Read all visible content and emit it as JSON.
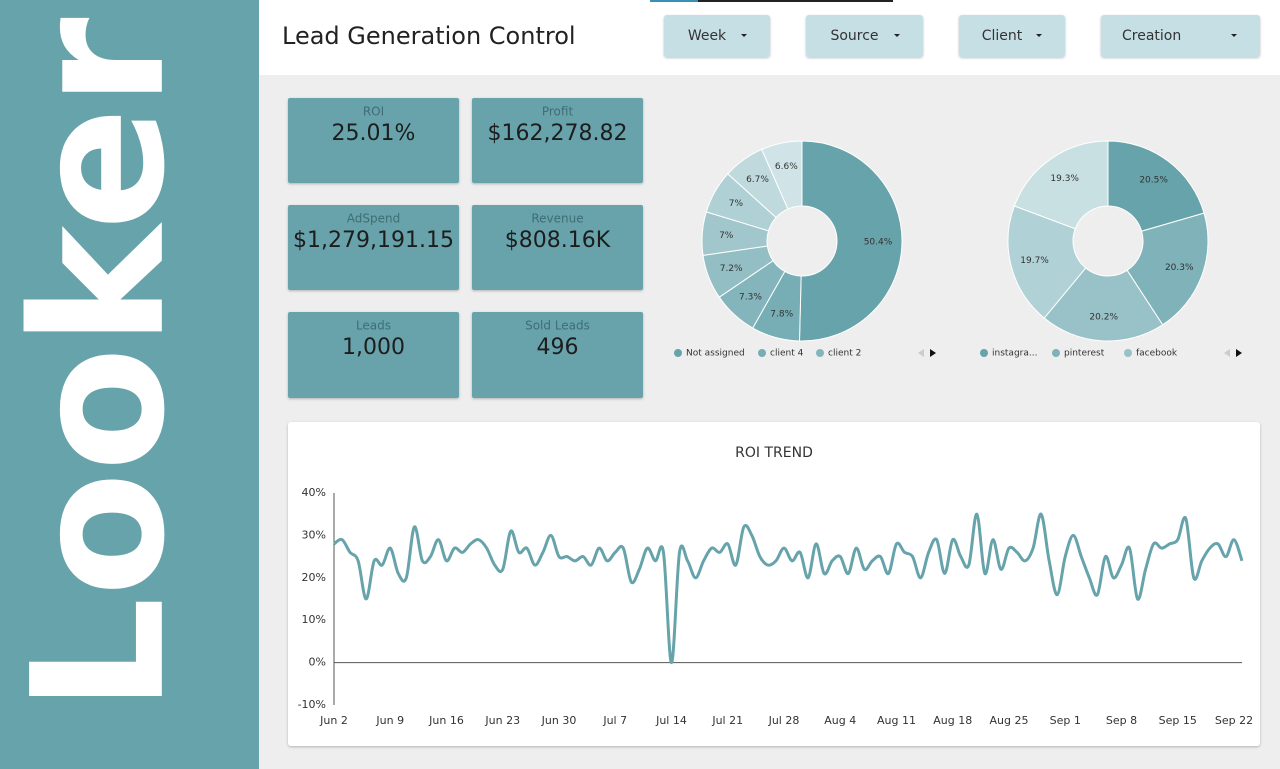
{
  "brand": "Looker",
  "header": {
    "title": "Lead Generation Control"
  },
  "filters": [
    "Week",
    "Source",
    "Client",
    "Creation"
  ],
  "kpis": [
    {
      "label": "ROI",
      "value": "25.01%"
    },
    {
      "label": "Profit",
      "value": "$162,278.82"
    },
    {
      "label": "AdSpend",
      "value": "$1,279,191.15"
    },
    {
      "label": "Revenue",
      "value": "$808.16K"
    },
    {
      "label": "Leads",
      "value": "1,000"
    },
    {
      "label": "Sold Leads",
      "value": "496"
    }
  ],
  "chart_data": [
    {
      "type": "pie",
      "categories": [
        "Not assigned",
        "client 4",
        "client 2",
        null,
        null,
        null,
        null,
        null
      ],
      "values": [
        50.4,
        7.8,
        7.3,
        7.2,
        7,
        7,
        6.7,
        6.6
      ],
      "value_labels": [
        "50.4%",
        "7.8%",
        "7.3%",
        "7.2%",
        "7%",
        "7%",
        "6.7%",
        "6.6%"
      ],
      "colors": [
        "#67a3ab",
        "#77adb4",
        "#85b5bc",
        "#93bec4",
        "#a1c7cc",
        "#afd0d4",
        "#bfd9dd",
        "#d0e4e7"
      ]
    },
    {
      "type": "pie",
      "categories": [
        "instagra...",
        "pinterest",
        "facebook",
        null,
        null
      ],
      "values": [
        20.5,
        20.3,
        20.2,
        19.7,
        19.3
      ],
      "value_labels": [
        "20.5%",
        "20.3%",
        "20.2%",
        "19.7%",
        "19.3%"
      ],
      "colors": [
        "#67a3ab",
        "#7fb2b9",
        "#98c2c7",
        "#b0d1d5",
        "#c9e0e3"
      ]
    },
    {
      "type": "line",
      "title": "ROI TREND",
      "categories": [
        "Jun 2",
        null,
        null,
        null,
        null,
        null,
        null,
        "Jun 9",
        null,
        null,
        null,
        null,
        null,
        null,
        "Jun 16",
        null,
        null,
        null,
        null,
        null,
        null,
        "Jun 23",
        null,
        null,
        null,
        null,
        null,
        null,
        "Jun 30",
        null,
        null,
        null,
        null,
        null,
        null,
        "Jul 7",
        null,
        null,
        null,
        null,
        null,
        null,
        "Jul 14",
        null,
        null,
        null,
        null,
        null,
        null,
        "Jul 21",
        null,
        null,
        null,
        null,
        null,
        null,
        "Jul 28",
        null,
        null,
        null,
        null,
        null,
        null,
        "Aug 4",
        null,
        null,
        null,
        null,
        null,
        null,
        "Aug 11",
        null,
        null,
        null,
        null,
        null,
        null,
        "Aug 18",
        null,
        null,
        null,
        null,
        null,
        null,
        "Aug 25",
        null,
        null,
        null,
        null,
        null,
        null,
        "Sep 1",
        null,
        null,
        null,
        null,
        null,
        null,
        "Sep 8",
        null,
        null,
        null,
        null,
        null,
        null,
        "Sep 15",
        null,
        null,
        null,
        null,
        null,
        null,
        "Sep 22",
        null
      ],
      "series": [
        {
          "name": "ROI",
          "color": "#67a3ab",
          "values": [
            28,
            29,
            26,
            24,
            15,
            24,
            23,
            27,
            21,
            20,
            32,
            24,
            25,
            29,
            24,
            27,
            26,
            28,
            29,
            27,
            23,
            22,
            31,
            26,
            27,
            23,
            26,
            30,
            25,
            25,
            24,
            25,
            23,
            27,
            24,
            26,
            27,
            19,
            22,
            27,
            24,
            26,
            0,
            26,
            24,
            20,
            24,
            27,
            26,
            28,
            23,
            32,
            30,
            25,
            23,
            24,
            27,
            24,
            26,
            20,
            28,
            21,
            24,
            25,
            21,
            27,
            22,
            24,
            25,
            21,
            28,
            26,
            25,
            20,
            26,
            29,
            21,
            29,
            25,
            23,
            35,
            21,
            29,
            22,
            27,
            26,
            24,
            27,
            35,
            24,
            16,
            25,
            30,
            25,
            20,
            16,
            25,
            20,
            23,
            27,
            15,
            22,
            28,
            27,
            28,
            29,
            34,
            20,
            24,
            27,
            28,
            25,
            29,
            24
          ]
        }
      ],
      "ylim": [
        -10,
        40
      ],
      "yticks": [
        {
          "value": -10,
          "label": "-10%"
        },
        {
          "value": 0,
          "label": "0%"
        },
        {
          "value": 10,
          "label": "10%"
        },
        {
          "value": 20,
          "label": "20%"
        },
        {
          "value": 30,
          "label": "30%"
        },
        {
          "value": 40,
          "label": "40%"
        }
      ],
      "grid": false
    }
  ]
}
